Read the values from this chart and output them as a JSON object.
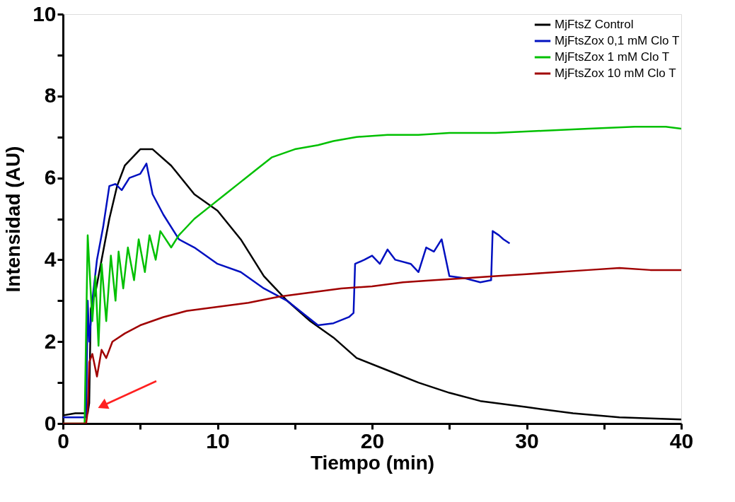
{
  "chart_data": {
    "type": "line",
    "xlabel": "Tiempo (min)",
    "ylabel": "Intensidad (AU)",
    "xlim": [
      0,
      40
    ],
    "ylim": [
      0,
      10
    ],
    "xticks": [
      0,
      {
        "value": 5,
        "label": null
      },
      10,
      {
        "value": 15,
        "label": null
      },
      20,
      {
        "value": 25,
        "label": null
      },
      30,
      {
        "value": 35,
        "label": null
      },
      40
    ],
    "yticks": [
      0,
      {
        "value": 1,
        "label": null
      },
      2,
      {
        "value": 3,
        "label": null
      },
      4,
      {
        "value": 5,
        "label": null
      },
      6,
      {
        "value": 7,
        "label": null
      },
      8,
      {
        "value": 9,
        "label": null
      },
      10
    ],
    "grid": false,
    "legend": "top right",
    "line_style": "solid",
    "marker": "none",
    "series": [
      {
        "name": "MjFtsZ Control",
        "color": "#000000",
        "x": [
          0,
          0.8,
          1.6,
          1.7,
          1.8,
          2.1,
          2.5,
          3,
          3.5,
          4,
          5,
          5.8,
          7,
          8.5,
          10,
          11.5,
          13,
          14.5,
          16,
          17.5,
          19,
          21,
          23,
          25,
          27,
          30,
          33,
          36,
          40
        ],
        "values": [
          0.2,
          0.25,
          0.25,
          0.5,
          2.8,
          3.2,
          4.0,
          5.0,
          5.8,
          6.3,
          6.7,
          6.7,
          6.3,
          5.6,
          5.2,
          4.5,
          3.6,
          3.0,
          2.5,
          2.1,
          1.6,
          1.3,
          1.0,
          0.75,
          0.55,
          0.4,
          0.25,
          0.15,
          0.1
        ]
      },
      {
        "name": "MjFtsZox 0,1 mM Clo T",
        "color": "#0010c0",
        "x": [
          0,
          1.5,
          1.6,
          1.7,
          1.9,
          2.2,
          2.6,
          3.0,
          3.4,
          3.8,
          4.3,
          5.0,
          5.4,
          5.8,
          6.5,
          7.5,
          8.5,
          10,
          11.5,
          13,
          14.5,
          15.5,
          16.5,
          17.5,
          18.5,
          18.8,
          18.9,
          19.5,
          20,
          20.5,
          21,
          21.5,
          22.5,
          23,
          23.5,
          24,
          24.5,
          25,
          26,
          27,
          27.7,
          27.8,
          28.2,
          28.5,
          28.9
        ],
        "values": [
          0.15,
          0.15,
          3.0,
          2.0,
          3.0,
          4.0,
          4.8,
          5.8,
          5.85,
          5.7,
          6.0,
          6.1,
          6.35,
          5.6,
          5.1,
          4.5,
          4.3,
          3.9,
          3.7,
          3.3,
          3.0,
          2.7,
          2.4,
          2.45,
          2.6,
          2.7,
          3.9,
          4.0,
          4.1,
          3.9,
          4.25,
          4.0,
          3.9,
          3.7,
          4.3,
          4.2,
          4.5,
          3.6,
          3.55,
          3.45,
          3.5,
          4.7,
          4.6,
          4.5,
          4.4
        ]
      },
      {
        "name": "MjFtsZox 1 mM Clo T",
        "color": "#00c000",
        "x": [
          0,
          1.4,
          1.6,
          1.9,
          2.1,
          2.3,
          2.5,
          2.8,
          3.1,
          3.4,
          3.6,
          3.9,
          4.2,
          4.6,
          4.9,
          5.3,
          5.6,
          6.0,
          6.3,
          7,
          7.5,
          8.5,
          9.5,
          10.5,
          11.5,
          12.5,
          13.5,
          15,
          16.5,
          17.5,
          19,
          21,
          23,
          25,
          28,
          31,
          34,
          37,
          39,
          40
        ],
        "values": [
          0,
          0,
          4.6,
          2.5,
          3.6,
          1.9,
          3.9,
          2.5,
          4.1,
          3.0,
          4.2,
          3.3,
          4.3,
          3.5,
          4.5,
          3.7,
          4.6,
          4.0,
          4.7,
          4.3,
          4.6,
          5.0,
          5.3,
          5.6,
          5.9,
          6.2,
          6.5,
          6.7,
          6.8,
          6.9,
          7.0,
          7.05,
          7.05,
          7.1,
          7.1,
          7.15,
          7.2,
          7.25,
          7.25,
          7.2
        ]
      },
      {
        "name": "MjFtsZox 10 mM Clo T",
        "color": "#a00000",
        "x": [
          0,
          1.5,
          1.6,
          1.7,
          1.9,
          2.2,
          2.5,
          2.8,
          3.2,
          4,
          5,
          6.5,
          8,
          10,
          12,
          14,
          16,
          18,
          20,
          22,
          24,
          26,
          28,
          30,
          32,
          34,
          36,
          38,
          40
        ],
        "values": [
          0,
          0,
          0.3,
          1.5,
          1.7,
          1.15,
          1.8,
          1.6,
          2.0,
          2.2,
          2.4,
          2.6,
          2.75,
          2.85,
          2.95,
          3.1,
          3.2,
          3.3,
          3.35,
          3.45,
          3.5,
          3.55,
          3.6,
          3.65,
          3.7,
          3.75,
          3.8,
          3.75,
          3.75
        ]
      }
    ]
  }
}
